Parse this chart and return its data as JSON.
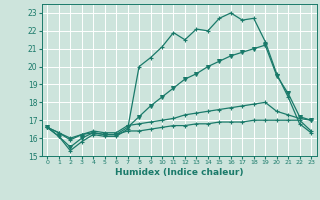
{
  "xlabel": "Humidex (Indice chaleur)",
  "xlim": [
    -0.5,
    23.5
  ],
  "ylim": [
    15,
    23.5
  ],
  "yticks": [
    15,
    16,
    17,
    18,
    19,
    20,
    21,
    22,
    23
  ],
  "xticks": [
    0,
    1,
    2,
    3,
    4,
    5,
    6,
    7,
    8,
    9,
    10,
    11,
    12,
    13,
    14,
    15,
    16,
    17,
    18,
    19,
    20,
    21,
    22,
    23
  ],
  "background_color": "#cde4dc",
  "grid_color": "#ffffff",
  "line_color": "#1a7a6a",
  "series": [
    {
      "y": [
        16.6,
        16.1,
        15.3,
        15.8,
        16.2,
        16.1,
        16.1,
        16.5,
        20.0,
        20.5,
        21.1,
        21.9,
        21.5,
        22.1,
        22.0,
        22.7,
        23.0,
        22.6,
        22.7,
        21.4,
        19.6,
        18.3,
        16.8,
        16.3
      ],
      "marker": "+"
    },
    {
      "y": [
        16.6,
        16.1,
        15.5,
        16.0,
        16.3,
        16.2,
        16.2,
        16.6,
        17.2,
        17.8,
        18.3,
        18.8,
        19.3,
        19.6,
        20.0,
        20.3,
        20.6,
        20.8,
        21.0,
        21.2,
        19.5,
        18.5,
        17.2,
        17.0
      ],
      "marker": "v"
    },
    {
      "y": [
        16.6,
        16.3,
        15.9,
        16.2,
        16.4,
        16.3,
        16.3,
        16.7,
        16.8,
        16.9,
        17.0,
        17.1,
        17.3,
        17.4,
        17.5,
        17.6,
        17.7,
        17.8,
        17.9,
        18.0,
        17.5,
        17.3,
        17.1,
        17.0
      ],
      "marker": "+"
    },
    {
      "y": [
        16.6,
        16.3,
        16.0,
        16.2,
        16.3,
        16.2,
        16.2,
        16.4,
        16.4,
        16.5,
        16.6,
        16.7,
        16.7,
        16.8,
        16.8,
        16.9,
        16.9,
        16.9,
        17.0,
        17.0,
        17.0,
        17.0,
        17.0,
        16.4
      ],
      "marker": "+"
    }
  ]
}
